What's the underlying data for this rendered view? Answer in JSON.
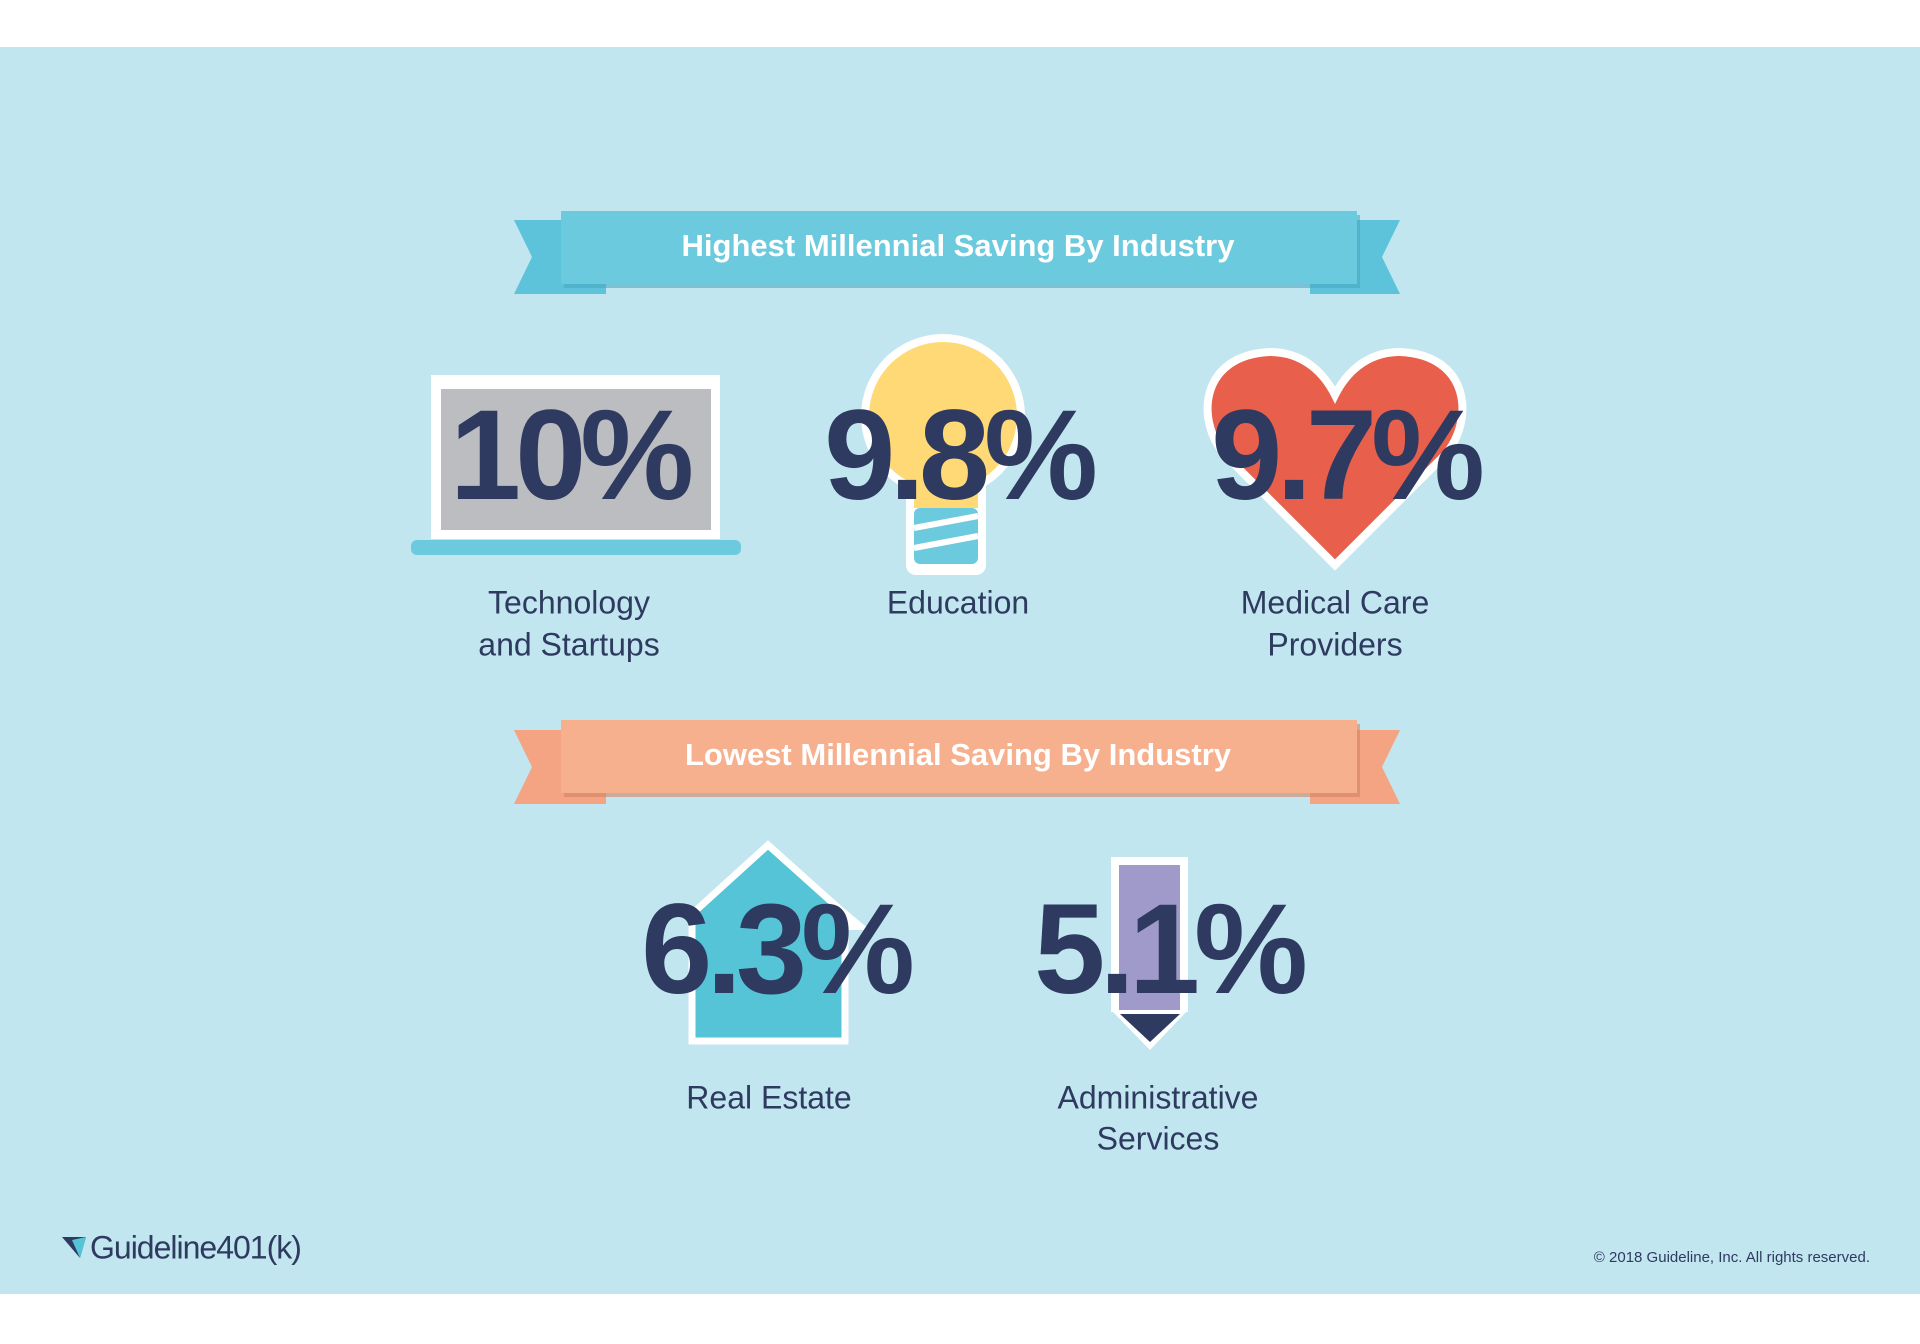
{
  "sections": [
    {
      "title": "Highest Millennial Saving By Industry",
      "items": [
        {
          "value": "10%",
          "label": [
            "Technology",
            "and Startups"
          ]
        },
        {
          "value": "9.8%",
          "label": [
            "Education"
          ]
        },
        {
          "value": "9.7%",
          "label": [
            "Medical Care",
            "Providers"
          ]
        }
      ]
    },
    {
      "title": "Lowest Millennial Saving By Industry",
      "items": [
        {
          "value": "6.3%",
          "label": [
            "Real Estate"
          ]
        },
        {
          "value": "5.1%",
          "label": [
            "Administrative",
            "Services"
          ]
        }
      ]
    }
  ],
  "logo": "Guideline401(k)",
  "copyright": "© 2018 Guideline, Inc. All rights reserved."
}
